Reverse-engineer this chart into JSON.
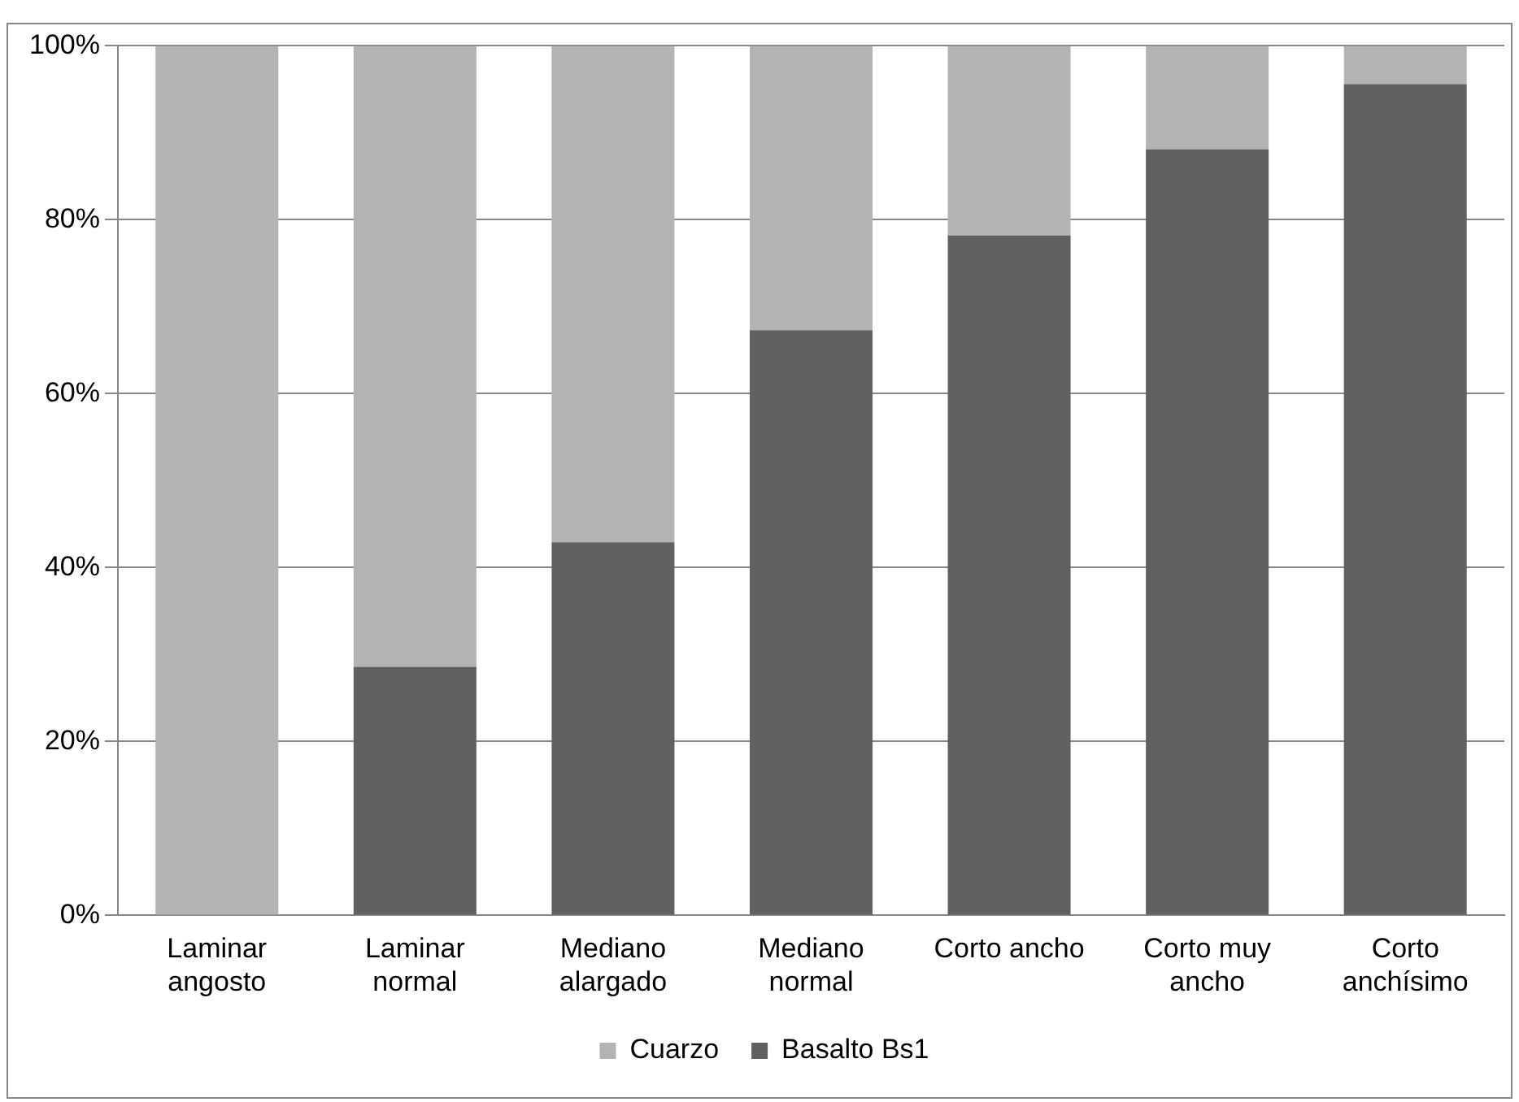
{
  "chart_data": {
    "type": "bar",
    "stacked": true,
    "categories": [
      "Laminar angosto",
      "Laminar normal",
      "Mediano alargado",
      "Mediano normal",
      "Corto ancho",
      "Corto muy ancho",
      "Corto anchísimo"
    ],
    "series": [
      {
        "name": "Basalto Bs1",
        "color": "#606060",
        "values": [
          0,
          28.6,
          42.9,
          67.3,
          78.2,
          88.1,
          95.6
        ]
      },
      {
        "name": "Cuarzo",
        "color": "#b3b3b3",
        "values": [
          100,
          71.4,
          57.1,
          32.7,
          21.8,
          11.9,
          4.4
        ]
      }
    ],
    "ylim": [
      0,
      100
    ],
    "yticks": [
      {
        "value": 0,
        "label": "0%"
      },
      {
        "value": 20,
        "label": "20%"
      },
      {
        "value": 40,
        "label": "40%"
      },
      {
        "value": 60,
        "label": "60%"
      },
      {
        "value": 80,
        "label": "80%"
      },
      {
        "value": 100,
        "label": "100%"
      }
    ],
    "grid": "y",
    "legend": "bottom"
  }
}
